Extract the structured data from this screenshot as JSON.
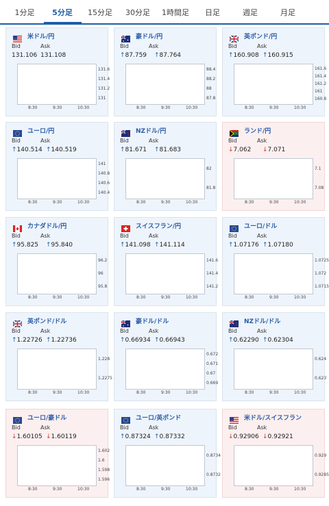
{
  "tabs": [
    {
      "label": "1分足",
      "active": false
    },
    {
      "label": "5分足",
      "active": true
    },
    {
      "label": "15分足",
      "active": false
    },
    {
      "label": "30分足",
      "active": false
    },
    {
      "label": "1時間足",
      "active": false
    },
    {
      "label": "日足",
      "active": false
    },
    {
      "label": "週足",
      "active": false
    },
    {
      "label": "月足",
      "active": false
    }
  ],
  "labels": {
    "bid": "Bid",
    "ask": "Ask"
  },
  "colors": {
    "up": "#1b5faa",
    "down": "#d23333",
    "ma": "#cc44cc",
    "accent": "#1b5faa"
  },
  "cards": [
    {
      "pair": "米ドル/円",
      "flag": "us-flag",
      "dir": "none",
      "bid": "131.106",
      "ask": "131.108",
      "y_ticks": [
        "131.6",
        "131.4",
        "131.2",
        "131"
      ],
      "x_ticks": [
        "8:30",
        "9:30",
        "10:30"
      ]
    },
    {
      "pair": "豪ドル/円",
      "flag": "au-flag",
      "dir": "up",
      "bid": "87.759",
      "ask": "87.764",
      "y_ticks": [
        "88.4",
        "88.2",
        "88",
        "87.8"
      ],
      "x_ticks": [
        "8:30",
        "9:30",
        "10:30"
      ]
    },
    {
      "pair": "英ポンド/円",
      "flag": "uk-flag",
      "dir": "up",
      "bid": "160.908",
      "ask": "160.915",
      "y_ticks": [
        "161.6",
        "161.4",
        "161.2",
        "161",
        "160.8"
      ],
      "x_ticks": [
        "8:30",
        "9:30",
        "10:30"
      ]
    },
    {
      "pair": "ユーロ/円",
      "flag": "eu-flag",
      "dir": "up",
      "bid": "140.514",
      "ask": "140.519",
      "y_ticks": [
        "141",
        "140.8",
        "140.6",
        "140.4"
      ],
      "x_ticks": [
        "8:30",
        "9:30",
        "10:30"
      ]
    },
    {
      "pair": "NZドル/円",
      "flag": "nz-flag",
      "dir": "up",
      "bid": "81.671",
      "ask": "81.683",
      "y_ticks": [
        "82",
        "81.8"
      ],
      "x_ticks": [
        "8:30",
        "9:30",
        "10:30"
      ]
    },
    {
      "pair": "ランド/円",
      "flag": "za-flag",
      "dir": "down",
      "bid": "7.062",
      "ask": "7.071",
      "y_ticks": [
        "7.1",
        "7.08"
      ],
      "x_ticks": [
        "8:30",
        "9:30",
        "10:30"
      ]
    },
    {
      "pair": "カナダドル/円",
      "flag": "ca-flag",
      "dir": "up",
      "bid": "95.825",
      "ask": "95.840",
      "y_ticks": [
        "96.2",
        "96",
        "95.8"
      ],
      "x_ticks": [
        "8:30",
        "9:30",
        "10:30"
      ]
    },
    {
      "pair": "スイスフラン/円",
      "flag": "ch-flag",
      "dir": "up",
      "bid": "141.098",
      "ask": "141.114",
      "y_ticks": [
        "141.6",
        "141.4",
        "141.2"
      ],
      "x_ticks": [
        "8:30",
        "9:30",
        "10:30"
      ]
    },
    {
      "pair": "ユーロ/ドル",
      "flag": "eu-flag",
      "dir": "up",
      "bid": "1.07176",
      "ask": "1.07180",
      "y_ticks": [
        "1.0725",
        "1.072",
        "1.0715"
      ],
      "x_ticks": [
        "8:30",
        "9:30",
        "10:30"
      ]
    },
    {
      "pair": "英ポンド/ドル",
      "flag": "uk-flag",
      "dir": "up",
      "bid": "1.22726",
      "ask": "1.22736",
      "y_ticks": [
        "1.228",
        "1.2275"
      ],
      "x_ticks": [
        "8:30",
        "9:30",
        "10:30"
      ]
    },
    {
      "pair": "豪ドル/ドル",
      "flag": "au-flag",
      "dir": "up",
      "bid": "0.66934",
      "ask": "0.66943",
      "y_ticks": [
        "0.672",
        "0.671",
        "0.67",
        "0.669"
      ],
      "x_ticks": [
        "8:30",
        "9:30",
        "10:30"
      ]
    },
    {
      "pair": "NZドル/ドル",
      "flag": "nz-flag",
      "dir": "up",
      "bid": "0.62290",
      "ask": "0.62304",
      "y_ticks": [
        "0.624",
        "0.623"
      ],
      "x_ticks": [
        "8:30",
        "9:30",
        "10:30"
      ]
    },
    {
      "pair": "ユーロ/豪ドル",
      "flag": "eu-flag",
      "dir": "down",
      "bid": "1.60105",
      "ask": "1.60119",
      "y_ticks": [
        "1.602",
        "1.6",
        "1.598",
        "1.596"
      ],
      "x_ticks": [
        "8:30",
        "9:30",
        "10:30"
      ]
    },
    {
      "pair": "ユーロ/英ポンド",
      "flag": "eu-flag",
      "dir": "up",
      "bid": "0.87324",
      "ask": "0.87332",
      "y_ticks": [
        "0.8734",
        "0.8732"
      ],
      "x_ticks": [
        "8:30",
        "9:30",
        "10:30"
      ]
    },
    {
      "pair": "米ドル/スイスフラン",
      "flag": "us-flag",
      "dir": "down",
      "bid": "0.92906",
      "ask": "0.92921",
      "y_ticks": [
        "0.929",
        "0.9285"
      ],
      "x_ticks": [
        "8:30",
        "9:30",
        "10:30"
      ]
    }
  ]
}
